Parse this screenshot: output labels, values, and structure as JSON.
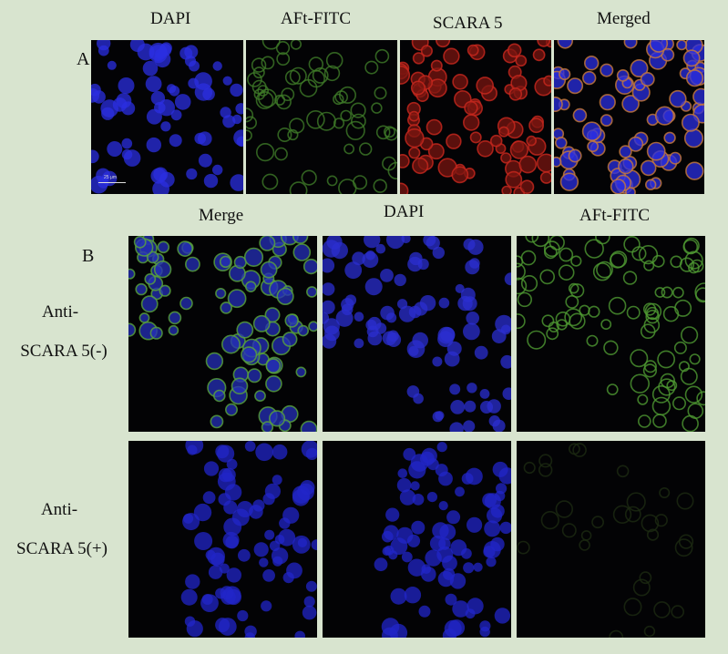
{
  "panel_a": {
    "letter": "A",
    "columns": [
      "DAPI",
      "AFt-FITC",
      "SCARA 5",
      "Merged"
    ],
    "scale_bar": "25 μm"
  },
  "panel_b": {
    "letter": "B",
    "columns": [
      "Merge",
      "DAPI",
      "AFt-FITC"
    ],
    "rows": [
      {
        "line1": "Anti-",
        "line2": "SCARA 5(-)"
      },
      {
        "line1": "Anti-",
        "line2": "SCARA 5(+)"
      }
    ]
  },
  "colors": {
    "background": "#d8e4cf",
    "dapi": "#2b2fe0",
    "fitc": "#5aa53a",
    "scara5": "#c8281e"
  }
}
